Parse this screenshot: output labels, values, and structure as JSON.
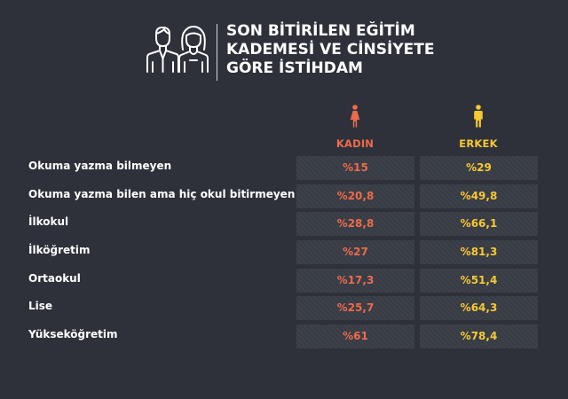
{
  "title_lines": [
    "SON BİTİRİLEN EĞİTİM",
    "KADEMESİ VE CİNSİYETE",
    "GÖRE İSTİHDAM"
  ],
  "icons": {
    "header": "man-and-woman-outline-icon",
    "kadin": "woman-figure-icon",
    "erkek": "man-figure-icon"
  },
  "colors": {
    "background": "#2e313a",
    "kadin": "#ef6a4b",
    "erkek": "#f8c833"
  },
  "columns": {
    "kadin": "KADIN",
    "erkek": "ERKEK"
  },
  "rows": [
    {
      "label": "Okuma yazma bilmeyen",
      "kadin": "%15",
      "erkek": "%29"
    },
    {
      "label": "Okuma yazma bilen ama hiç okul bitirmeyen",
      "kadin": "%20,8",
      "erkek": "%49,8"
    },
    {
      "label": "İlkokul",
      "kadin": "%28,8",
      "erkek": "%66,1"
    },
    {
      "label": "İlköğretim",
      "kadin": "%27",
      "erkek": "%81,3"
    },
    {
      "label": "Ortaokul",
      "kadin": "%17,3",
      "erkek": "%51,4"
    },
    {
      "label": "Lise",
      "kadin": "%25,7",
      "erkek": "%64,3"
    },
    {
      "label": "Yükseköğretim",
      "kadin": "%61",
      "erkek": "%78,4"
    }
  ]
}
